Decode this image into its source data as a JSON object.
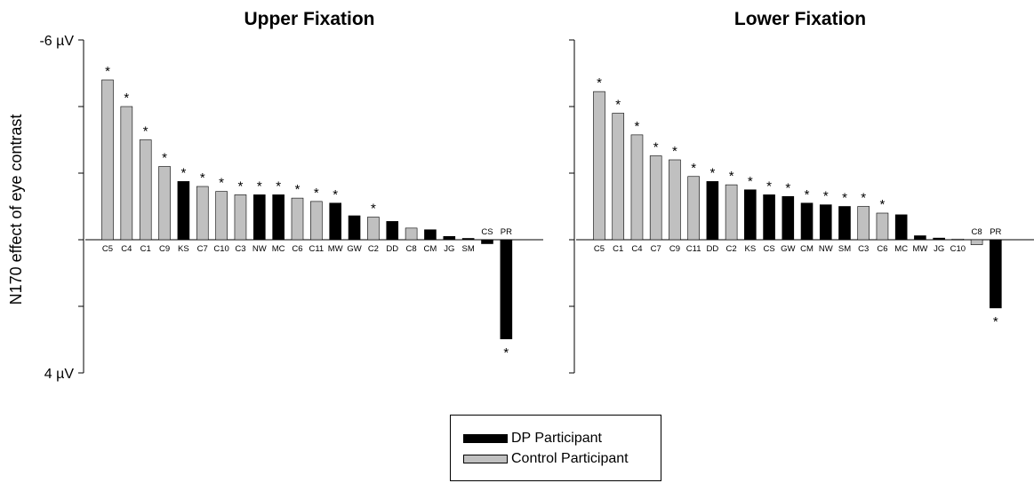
{
  "colors": {
    "dp": "#000000",
    "control": "#c0c0c0",
    "axis": "#000000"
  },
  "chart_data": [
    {
      "type": "bar",
      "title": "Upper Fixation",
      "ylabel": "N170 effect of eye contrast",
      "ylim": [
        -6,
        4
      ],
      "y_inverted": true,
      "yticks": [
        -6,
        -4,
        -2,
        0,
        2,
        4
      ],
      "ytick_labels": [
        {
          "value": -6,
          "label": "-6 µV"
        },
        {
          "value": 4,
          "label": "4 µV"
        }
      ],
      "categories": [
        "C5",
        "C4",
        "C1",
        "C9",
        "KS",
        "C7",
        "C10",
        "C3",
        "NW",
        "MC",
        "C6",
        "C11",
        "MW",
        "GW",
        "C2",
        "DD",
        "C8",
        "CM",
        "JG",
        "SM",
        "CS",
        "PR"
      ],
      "values": [
        -4.8,
        -4.0,
        -3.0,
        -2.2,
        -1.75,
        -1.6,
        -1.45,
        -1.35,
        -1.35,
        -1.35,
        -1.25,
        -1.15,
        -1.1,
        -0.72,
        -0.68,
        -0.55,
        -0.35,
        -0.3,
        -0.1,
        -0.04,
        0.12,
        2.98
      ],
      "groups": [
        "control",
        "control",
        "control",
        "control",
        "dp",
        "control",
        "control",
        "control",
        "dp",
        "dp",
        "control",
        "control",
        "dp",
        "dp",
        "control",
        "dp",
        "control",
        "dp",
        "dp",
        "dp",
        "dp",
        "dp"
      ],
      "significant": [
        true,
        true,
        true,
        true,
        true,
        true,
        true,
        true,
        true,
        true,
        true,
        true,
        true,
        false,
        true,
        false,
        false,
        false,
        false,
        false,
        false,
        true
      ],
      "significance_marker": "*"
    },
    {
      "type": "bar",
      "title": "Lower Fixation",
      "ylim": [
        -6,
        4
      ],
      "y_inverted": true,
      "yticks": [
        -6,
        -4,
        -2,
        0,
        2,
        4
      ],
      "categories": [
        "C5",
        "C1",
        "C4",
        "C7",
        "C9",
        "C11",
        "DD",
        "C2",
        "KS",
        "CS",
        "GW",
        "CM",
        "NW",
        "SM",
        "C3",
        "C6",
        "MC",
        "MW",
        "JG",
        "C10",
        "C8",
        "PR"
      ],
      "values": [
        -4.45,
        -3.8,
        -3.15,
        -2.52,
        -2.4,
        -1.9,
        -1.75,
        -1.65,
        -1.5,
        -1.35,
        -1.3,
        -1.1,
        -1.05,
        -1.0,
        -1.0,
        -0.8,
        -0.75,
        -0.12,
        -0.05,
        -0.02,
        0.15,
        2.05
      ],
      "groups": [
        "control",
        "control",
        "control",
        "control",
        "control",
        "control",
        "dp",
        "control",
        "dp",
        "dp",
        "dp",
        "dp",
        "dp",
        "dp",
        "control",
        "control",
        "dp",
        "dp",
        "dp",
        "control",
        "control",
        "dp"
      ],
      "significant": [
        true,
        true,
        true,
        true,
        true,
        true,
        true,
        true,
        true,
        true,
        true,
        true,
        true,
        true,
        true,
        true,
        false,
        false,
        false,
        false,
        false,
        true
      ],
      "significance_marker": "*"
    }
  ],
  "legend": {
    "dp_label": "DP Participant",
    "control_label": "Control Participant"
  }
}
